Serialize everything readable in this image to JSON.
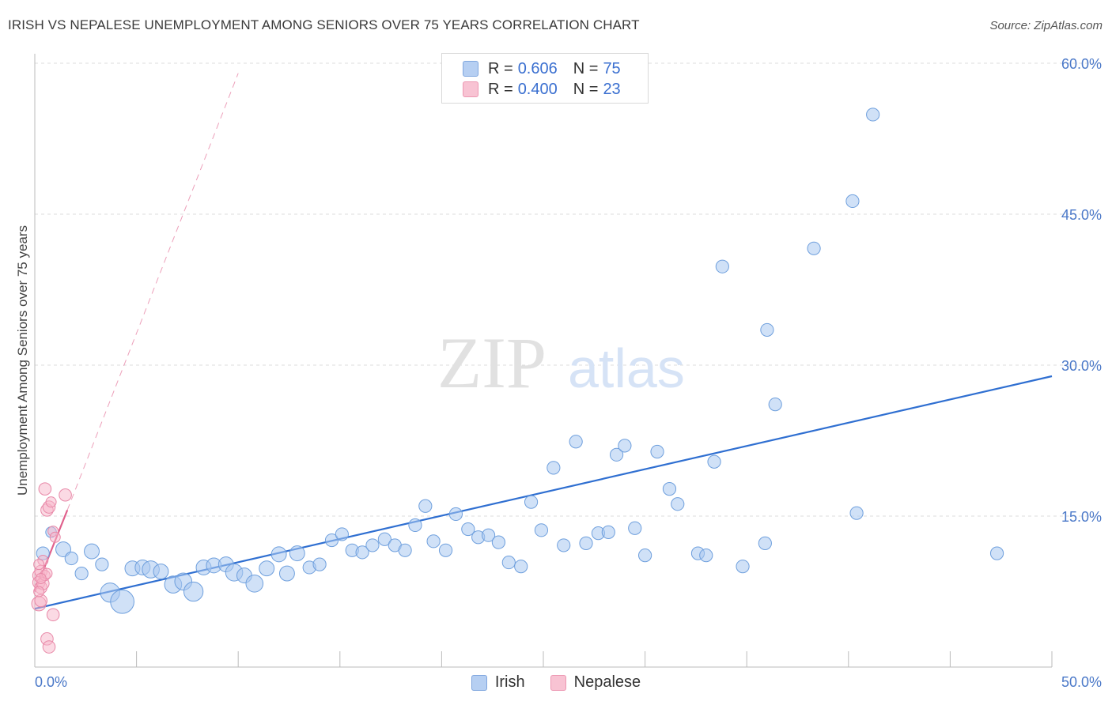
{
  "header": {
    "title": "IRISH VS NEPALESE UNEMPLOYMENT AMONG SENIORS OVER 75 YEARS CORRELATION CHART",
    "source": "Source: ZipAtlas.com"
  },
  "watermark": {
    "zip": "ZIP",
    "atlas": "atlas"
  },
  "legend": {
    "irish": {
      "r_label": "R =",
      "r_value": "0.606",
      "n_label": "N =",
      "n_value": "75"
    },
    "nepalese": {
      "r_label": "R =",
      "r_value": "0.400",
      "n_label": "N =",
      "n_value": "23"
    }
  },
  "colors": {
    "irish_fill": "#a9c8f0",
    "irish_stroke": "#6e9fdd",
    "irish_line": "#2f6fd1",
    "nepalese_fill": "#f7b6ca",
    "nepalese_stroke": "#e889a8",
    "nepalese_line": "#e0608c"
  },
  "chart_data": {
    "type": "scatter",
    "title": "IRISH VS NEPALESE UNEMPLOYMENT AMONG SENIORS OVER 75 YEARS CORRELATION CHART",
    "xlabel": "",
    "ylabel": "Unemployment Among Seniors over 75 years",
    "xlim": [
      0,
      50
    ],
    "ylim": [
      0,
      60
    ],
    "x_tick_labels": [
      "0.0%",
      "50.0%"
    ],
    "y_tick_labels": [
      "15.0%",
      "30.0%",
      "45.0%",
      "60.0%"
    ],
    "y_ticks": [
      15,
      30,
      45,
      60
    ],
    "legend_position": "bottom",
    "series": [
      {
        "name": "Irish",
        "points": [
          [
            0.4,
            11.3,
            6
          ],
          [
            0.8,
            13.4,
            5
          ],
          [
            1.4,
            11.7,
            7
          ],
          [
            1.8,
            10.8,
            6
          ],
          [
            2.3,
            9.3,
            6
          ],
          [
            2.8,
            11.5,
            7
          ],
          [
            3.3,
            10.2,
            6
          ],
          [
            3.7,
            7.4,
            9
          ],
          [
            4.3,
            6.5,
            11
          ],
          [
            4.8,
            9.8,
            7
          ],
          [
            5.3,
            9.9,
            7
          ],
          [
            5.7,
            9.7,
            8
          ],
          [
            6.2,
            9.5,
            7
          ],
          [
            6.8,
            8.2,
            8
          ],
          [
            7.3,
            8.5,
            8
          ],
          [
            7.8,
            7.5,
            9
          ],
          [
            8.3,
            9.9,
            7
          ],
          [
            8.8,
            10.1,
            7
          ],
          [
            9.4,
            10.2,
            7
          ],
          [
            9.8,
            9.4,
            8
          ],
          [
            10.3,
            9.1,
            7
          ],
          [
            10.8,
            8.3,
            8
          ],
          [
            11.4,
            9.8,
            7
          ],
          [
            12.0,
            11.2,
            7
          ],
          [
            12.4,
            9.3,
            7
          ],
          [
            12.9,
            11.3,
            7
          ],
          [
            13.5,
            9.9,
            6
          ],
          [
            14.0,
            10.2,
            6
          ],
          [
            14.6,
            12.6,
            6
          ],
          [
            15.1,
            13.2,
            6
          ],
          [
            15.6,
            11.6,
            6
          ],
          [
            16.1,
            11.4,
            6
          ],
          [
            16.6,
            12.1,
            6
          ],
          [
            17.2,
            12.7,
            6
          ],
          [
            17.7,
            12.1,
            6
          ],
          [
            18.2,
            11.6,
            6
          ],
          [
            18.7,
            14.1,
            6
          ],
          [
            19.2,
            16.0,
            6
          ],
          [
            19.6,
            12.5,
            6
          ],
          [
            20.2,
            11.6,
            6
          ],
          [
            20.7,
            15.2,
            6
          ],
          [
            21.3,
            13.7,
            6
          ],
          [
            21.8,
            12.9,
            6
          ],
          [
            22.3,
            13.1,
            6
          ],
          [
            22.8,
            12.4,
            6
          ],
          [
            23.3,
            10.4,
            6
          ],
          [
            23.9,
            10.0,
            6
          ],
          [
            24.4,
            16.4,
            6
          ],
          [
            24.9,
            13.6,
            6
          ],
          [
            25.5,
            19.8,
            6
          ],
          [
            26.0,
            12.1,
            6
          ],
          [
            26.6,
            22.4,
            6
          ],
          [
            27.1,
            12.3,
            6
          ],
          [
            27.7,
            13.3,
            6
          ],
          [
            28.2,
            13.4,
            6
          ],
          [
            28.6,
            21.1,
            6
          ],
          [
            29.0,
            22.0,
            6
          ],
          [
            29.5,
            13.8,
            6
          ],
          [
            30.0,
            11.1,
            6
          ],
          [
            30.6,
            21.4,
            6
          ],
          [
            31.2,
            17.7,
            6
          ],
          [
            31.6,
            16.2,
            6
          ],
          [
            32.6,
            11.3,
            6
          ],
          [
            33.0,
            11.1,
            6
          ],
          [
            33.4,
            20.4,
            6
          ],
          [
            33.8,
            39.8,
            6
          ],
          [
            34.8,
            10.0,
            6
          ],
          [
            35.9,
            12.3,
            6
          ],
          [
            36.0,
            33.5,
            6
          ],
          [
            36.4,
            26.1,
            6
          ],
          [
            38.3,
            41.6,
            6
          ],
          [
            40.2,
            46.3,
            6
          ],
          [
            40.4,
            15.3,
            6
          ],
          [
            41.2,
            54.9,
            6
          ],
          [
            47.3,
            11.3,
            6
          ]
        ],
        "trend": {
          "x": [
            0,
            50
          ],
          "y": [
            5.8,
            28.9
          ]
        }
      },
      {
        "name": "Nepalese",
        "points": [
          [
            0.2,
            9.1,
            6
          ],
          [
            0.3,
            9.5,
            6
          ],
          [
            0.2,
            8.4,
            6
          ],
          [
            0.3,
            7.9,
            6
          ],
          [
            0.4,
            8.3,
            6
          ],
          [
            0.5,
            9.1,
            5
          ],
          [
            0.6,
            9.3,
            5
          ],
          [
            0.2,
            6.3,
            7
          ],
          [
            0.3,
            6.6,
            6
          ],
          [
            0.5,
            17.7,
            6
          ],
          [
            0.6,
            15.6,
            6
          ],
          [
            0.7,
            15.9,
            6
          ],
          [
            0.8,
            16.4,
            5
          ],
          [
            0.9,
            13.5,
            5
          ],
          [
            1.0,
            12.9,
            5
          ],
          [
            1.5,
            17.1,
            6
          ],
          [
            0.9,
            5.2,
            6
          ],
          [
            0.6,
            2.8,
            6
          ],
          [
            0.7,
            2.0,
            6
          ],
          [
            0.4,
            10.6,
            5
          ],
          [
            0.2,
            10.2,
            5
          ],
          [
            0.3,
            8.8,
            5
          ],
          [
            0.2,
            7.5,
            5
          ]
        ],
        "trend_solid": {
          "x": [
            0,
            1.6
          ],
          "y": [
            7.5,
            15.6
          ]
        },
        "trend_dashed": {
          "x": [
            1.6,
            10.0
          ],
          "y": [
            15.6,
            59.0
          ]
        }
      }
    ]
  }
}
